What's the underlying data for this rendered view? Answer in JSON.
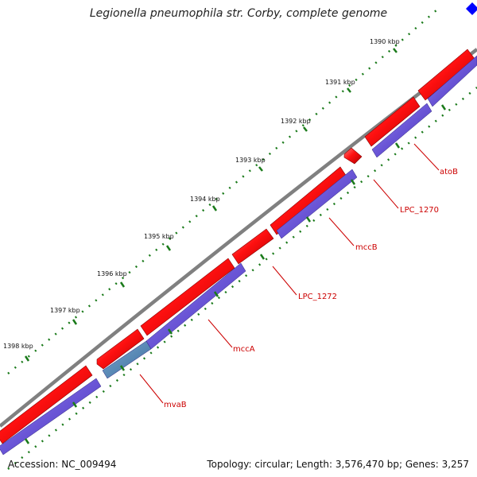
{
  "title": "Legionella pneumophila str. Corby, complete genome",
  "footer": {
    "accession": "Accession: NC_009494",
    "topology": "Topology: circular; Length: 3,576,470 bp; Genes: 3,257"
  },
  "ticks": [
    "1390 kbp",
    "1391 kbp",
    "1392 kbp",
    "1393 kbp",
    "1394 kbp",
    "1395 kbp",
    "1396 kbp",
    "1397 kbp",
    "1398 kbp"
  ],
  "gene_labels": [
    "atoB",
    "LPC_1270",
    "mccB",
    "LPC_1272",
    "mccA",
    "mvaB"
  ],
  "colors": {
    "backbone": "#808080",
    "forward_feature": "#ff0000",
    "cds_bar": "#6a55d6",
    "highlight_bar": "#4682b4",
    "label": "#cc0000",
    "tick": "#1a7a1a",
    "selection": "#0000ff"
  }
}
